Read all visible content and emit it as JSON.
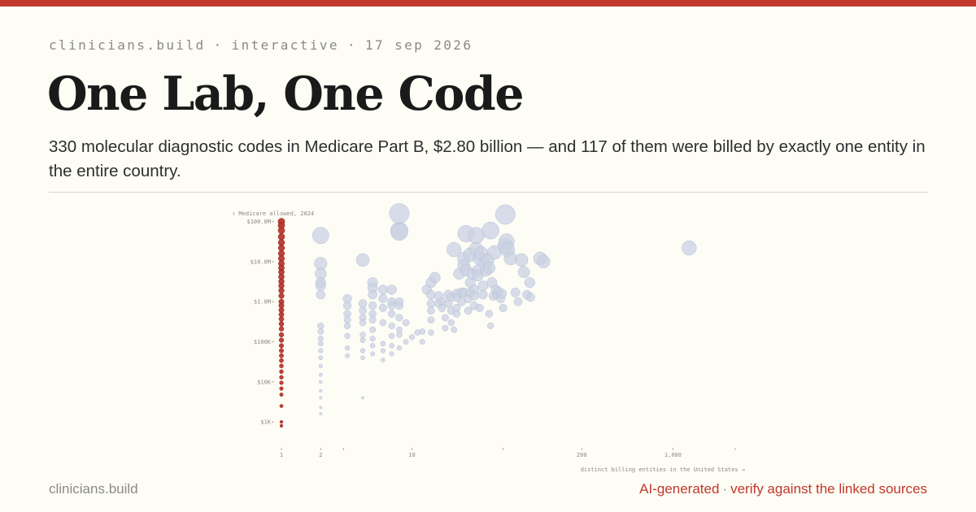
{
  "header": {
    "kicker_site": "clinicians.build",
    "kicker_type": "interactive",
    "kicker_date": "17 sep 2026",
    "separator": "·",
    "title": "One Lab, One Code",
    "subtitle": "330 molecular diagnostic codes in Medicare Part B, $2.80 billion — and 117 of them were billed by exactly one entity in the entire country."
  },
  "footer": {
    "site": "clinicians.build",
    "ai_label": "AI-generated",
    "separator": "·",
    "verify_label": "verify against the linked sources"
  },
  "colors": {
    "accent": "#c0392b",
    "single_entity": "#b8312a",
    "multi_entity": "#c9d1e3",
    "background": "#fdfcf5"
  },
  "chart_data": {
    "type": "scatter",
    "title": "",
    "xlabel": "distinct billing entities in the United States →",
    "ylabel": "↑ Medicare allowed, 2024",
    "x_scale": "log",
    "y_scale": "log",
    "xlim": [
      1,
      3000
    ],
    "ylim": [
      500,
      150000000
    ],
    "x_ticks": [
      {
        "v": 1,
        "label": "1"
      },
      {
        "v": 2,
        "label": "2"
      },
      {
        "v": 3,
        "label": ""
      },
      {
        "v": 10,
        "label": "10"
      },
      {
        "v": 50,
        "label": ""
      },
      {
        "v": 200,
        "label": "200"
      },
      {
        "v": 1000,
        "label": "1,000"
      },
      {
        "v": 3000,
        "label": ""
      }
    ],
    "y_ticks": [
      {
        "v": 1000,
        "label": "$1K"
      },
      {
        "v": 10000,
        "label": "$10K"
      },
      {
        "v": 100000,
        "label": "$100K"
      },
      {
        "v": 1000000,
        "label": "$1.0M"
      },
      {
        "v": 10000000,
        "label": "$10.0M"
      },
      {
        "v": 100000000,
        "label": "$100.0M"
      }
    ],
    "series": [
      {
        "color": "#b8312a",
        "points": [
          [
            1,
            100000000
          ],
          [
            1,
            80000000
          ],
          [
            1,
            60000000
          ],
          [
            1,
            42000000
          ],
          [
            1,
            30000000
          ],
          [
            1,
            22000000
          ],
          [
            1,
            16000000
          ],
          [
            1,
            12000000
          ],
          [
            1,
            9000000
          ],
          [
            1,
            7000000
          ],
          [
            1,
            5500000
          ],
          [
            1,
            4200000
          ],
          [
            1,
            3200000
          ],
          [
            1,
            2500000
          ],
          [
            1,
            1900000
          ],
          [
            1,
            1400000
          ],
          [
            1,
            1000000
          ],
          [
            1,
            800000
          ],
          [
            1,
            620000
          ],
          [
            1,
            480000
          ],
          [
            1,
            370000
          ],
          [
            1,
            280000
          ],
          [
            1,
            210000
          ],
          [
            1,
            150000
          ],
          [
            1,
            110000
          ],
          [
            1,
            80000
          ],
          [
            1,
            60000
          ],
          [
            1,
            45000
          ],
          [
            1,
            34000
          ],
          [
            1,
            25000
          ],
          [
            1,
            18000
          ],
          [
            1,
            13000
          ],
          [
            1,
            9500
          ],
          [
            1,
            6800
          ],
          [
            1,
            4800
          ],
          [
            1,
            2500
          ],
          [
            1,
            1000
          ],
          [
            1,
            800
          ]
        ]
      },
      {
        "color": "#c9d1e3",
        "points": [
          [
            2,
            45000000
          ],
          [
            2,
            9000000
          ],
          [
            2,
            5000000
          ],
          [
            2,
            3000000
          ],
          [
            2,
            2500000
          ],
          [
            2,
            1500000
          ],
          [
            2,
            250000
          ],
          [
            2,
            180000
          ],
          [
            2,
            120000
          ],
          [
            2,
            90000
          ],
          [
            2,
            60000
          ],
          [
            2,
            40000
          ],
          [
            2,
            25000
          ],
          [
            2,
            15000
          ],
          [
            2,
            10000
          ],
          [
            2,
            6000
          ],
          [
            2,
            4000
          ],
          [
            2,
            2300
          ],
          [
            2,
            1600
          ],
          [
            3.2,
            1200000
          ],
          [
            3.2,
            800000
          ],
          [
            3.2,
            500000
          ],
          [
            3.2,
            350000
          ],
          [
            3.2,
            250000
          ],
          [
            3.2,
            140000
          ],
          [
            3.2,
            70000
          ],
          [
            3.2,
            45000
          ],
          [
            4.2,
            11000000
          ],
          [
            4.2,
            900000
          ],
          [
            4.2,
            600000
          ],
          [
            4.2,
            400000
          ],
          [
            4.2,
            300000
          ],
          [
            4.2,
            150000
          ],
          [
            4.2,
            110000
          ],
          [
            4.2,
            60000
          ],
          [
            4.2,
            40000
          ],
          [
            4.2,
            4000
          ],
          [
            5,
            3000000
          ],
          [
            5,
            2200000
          ],
          [
            5,
            1500000
          ],
          [
            5,
            800000
          ],
          [
            5,
            500000
          ],
          [
            5,
            350000
          ],
          [
            5,
            200000
          ],
          [
            5,
            120000
          ],
          [
            5,
            80000
          ],
          [
            5,
            50000
          ],
          [
            6,
            2000000
          ],
          [
            6,
            1200000
          ],
          [
            6,
            700000
          ],
          [
            6,
            300000
          ],
          [
            6,
            90000
          ],
          [
            6,
            60000
          ],
          [
            6,
            35000
          ],
          [
            7,
            2000000
          ],
          [
            7,
            1000000
          ],
          [
            7,
            800000
          ],
          [
            7,
            500000
          ],
          [
            7,
            250000
          ],
          [
            7,
            140000
          ],
          [
            7,
            80000
          ],
          [
            7,
            50000
          ],
          [
            8,
            60000000
          ],
          [
            8,
            55000000
          ],
          [
            8,
            1000000
          ],
          [
            8,
            800000
          ],
          [
            8,
            400000
          ],
          [
            8,
            200000
          ],
          [
            8,
            150000
          ],
          [
            8,
            70000
          ],
          [
            9,
            300000
          ],
          [
            9,
            100000
          ],
          [
            10,
            130000
          ],
          [
            11,
            170000
          ],
          [
            12,
            180000
          ],
          [
            12,
            100000
          ],
          [
            13,
            2000000
          ],
          [
            14,
            3000000
          ],
          [
            14,
            1500000
          ],
          [
            14,
            900000
          ],
          [
            14,
            600000
          ],
          [
            14,
            350000
          ],
          [
            14,
            170000
          ],
          [
            15,
            4000000
          ],
          [
            16,
            1400000
          ],
          [
            16,
            900000
          ],
          [
            17,
            1000000
          ],
          [
            17,
            700000
          ],
          [
            18,
            400000
          ],
          [
            18,
            220000
          ],
          [
            19,
            1500000
          ],
          [
            19,
            900000
          ],
          [
            20,
            1300000
          ],
          [
            20,
            600000
          ],
          [
            20,
            300000
          ],
          [
            21,
            20000000
          ],
          [
            21,
            200000
          ],
          [
            22,
            1600000
          ],
          [
            22,
            1300000
          ],
          [
            22,
            700000
          ],
          [
            22,
            500000
          ],
          [
            23,
            5000000
          ],
          [
            24,
            1700000
          ],
          [
            24,
            1000000
          ],
          [
            25,
            12000000
          ],
          [
            25,
            8000000
          ],
          [
            25,
            1700000
          ],
          [
            26,
            50000000
          ],
          [
            26,
            6000000
          ],
          [
            27,
            1200000
          ],
          [
            27,
            600000
          ],
          [
            28,
            15000000
          ],
          [
            28,
            3000000
          ],
          [
            28,
            1700000
          ],
          [
            29,
            5000000
          ],
          [
            30,
            2000000
          ],
          [
            30,
            1400000
          ],
          [
            30,
            800000
          ],
          [
            31,
            45000000
          ],
          [
            31,
            20000000
          ],
          [
            32,
            6000000
          ],
          [
            32,
            4500000
          ],
          [
            33,
            12000000
          ],
          [
            33,
            700000
          ],
          [
            34,
            16000000
          ],
          [
            35,
            2500000
          ],
          [
            35,
            1500000
          ],
          [
            36,
            9000000
          ],
          [
            37,
            6000000
          ],
          [
            38,
            11000000
          ],
          [
            39,
            500000
          ],
          [
            39,
            7000000
          ],
          [
            40,
            60000000
          ],
          [
            40,
            250000
          ],
          [
            41,
            3000000
          ],
          [
            42,
            1400000
          ],
          [
            43,
            17000000
          ],
          [
            44,
            2000000
          ],
          [
            45,
            1500000
          ],
          [
            46,
            1800000
          ],
          [
            48,
            1200000
          ],
          [
            49,
            1600000
          ],
          [
            50,
            700000
          ],
          [
            52,
            25000000
          ],
          [
            53,
            32000000
          ],
          [
            54,
            20000000
          ],
          [
            57,
            12000000
          ],
          [
            62,
            1700000
          ],
          [
            65,
            1000000
          ],
          [
            69,
            11000000
          ],
          [
            72,
            5500000
          ],
          [
            76,
            1500000
          ],
          [
            80,
            3000000
          ],
          [
            81,
            1300000
          ],
          [
            96,
            12000000
          ],
          [
            102,
            10000000
          ],
          [
            52,
            150000000
          ],
          [
            8,
            160000000
          ],
          [
            1330,
            22000000
          ]
        ]
      }
    ]
  }
}
